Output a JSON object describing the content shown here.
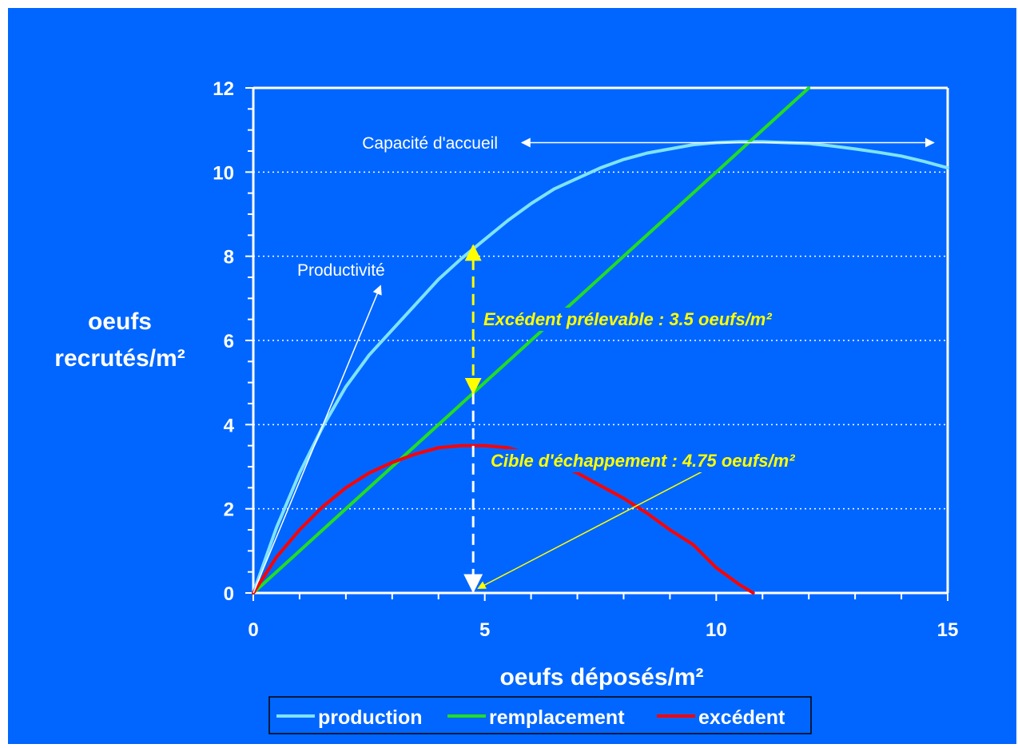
{
  "chart_data": {
    "type": "line",
    "title": "",
    "xlabel": "oeufs déposés/m²",
    "ylabel_lines": [
      "oeufs",
      "recrutés/m²"
    ],
    "xlim": [
      0,
      15
    ],
    "ylim": [
      0,
      12
    ],
    "x_ticks": [
      0,
      5,
      10,
      15
    ],
    "y_ticks": [
      0,
      2,
      4,
      6,
      8,
      10,
      12
    ],
    "grid": "horizontal-dotted",
    "legend_position": "bottom",
    "series": [
      {
        "name": "production",
        "color": "#7fe3ff",
        "x": [
          0,
          0.5,
          1,
          1.5,
          2,
          2.5,
          3,
          3.5,
          4,
          4.5,
          5,
          5.5,
          6,
          6.5,
          7,
          7.5,
          8,
          8.5,
          9,
          9.5,
          10,
          10.5,
          11,
          11.5,
          12,
          12.5,
          13,
          13.5,
          14,
          14.5,
          15
        ],
        "y": [
          0,
          1.55,
          2.85,
          3.95,
          4.9,
          5.65,
          6.25,
          6.85,
          7.45,
          7.95,
          8.4,
          8.85,
          9.25,
          9.6,
          9.85,
          10.1,
          10.3,
          10.45,
          10.55,
          10.65,
          10.7,
          10.72,
          10.72,
          10.7,
          10.68,
          10.62,
          10.55,
          10.47,
          10.38,
          10.25,
          10.1
        ]
      },
      {
        "name": "remplacement",
        "color": "#22dd22",
        "x": [
          0,
          1,
          2,
          3,
          4,
          5,
          6,
          7,
          8,
          9,
          10,
          11,
          12
        ],
        "y": [
          0,
          1.0,
          2.0,
          3.0,
          4.0,
          5.0,
          6.0,
          7.0,
          8.0,
          9.0,
          10.0,
          11.0,
          12.0
        ]
      },
      {
        "name": "excédent",
        "color": "#ff0000",
        "x": [
          0,
          0.5,
          1,
          1.5,
          2,
          2.5,
          3,
          3.5,
          4,
          4.5,
          5,
          5.5,
          6,
          6.5,
          7,
          7.5,
          8,
          8.5,
          9,
          9.5,
          10,
          10.5,
          10.8
        ],
        "y": [
          0,
          0.85,
          1.5,
          2.05,
          2.5,
          2.85,
          3.1,
          3.3,
          3.45,
          3.5,
          3.5,
          3.45,
          3.3,
          3.1,
          2.85,
          2.55,
          2.25,
          1.9,
          1.5,
          1.15,
          0.6,
          0.2,
          0
        ]
      }
    ],
    "annotations": {
      "capacite": {
        "text": "Capacité d'accueil",
        "y": 10.7,
        "x_from": 5.8,
        "x_to": 14.7
      },
      "productivite": {
        "text": "Productivité",
        "arrow_from": [
          0,
          0
        ],
        "arrow_to": [
          2.75,
          7.3
        ]
      },
      "excedent_prelevable": {
        "text": "Excédent prélevable : 3.5 oeufs/m²",
        "x": 4.75,
        "y_from": 4.75,
        "y_to": 8.25,
        "color": "#ffff00"
      },
      "cible": {
        "text": "Cible d'échappement : 4.75 oeufs/m²",
        "arrow_from": [
          9.9,
          3.0
        ],
        "arrow_to": [
          4.75,
          0.05
        ],
        "color": "#ffff00"
      },
      "dashed_marker": {
        "x": 4.75,
        "y_from": 0,
        "y_to": 4.75,
        "color": "#ffffff"
      }
    }
  }
}
